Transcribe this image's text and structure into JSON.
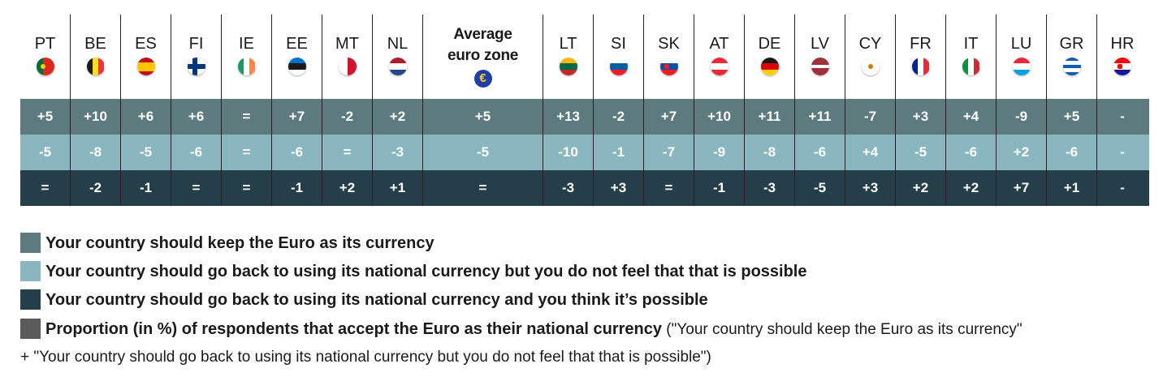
{
  "colors": {
    "keep": "#5d7b7e",
    "back_impossible": "#8ab6bf",
    "back_possible": "#253f4a",
    "accept": "#5a5a5a"
  },
  "chart_data": {
    "type": "table",
    "columns": [
      {
        "code": "PT",
        "flag": "portugal-flag-icon"
      },
      {
        "code": "BE",
        "flag": "belgium-flag-icon"
      },
      {
        "code": "ES",
        "flag": "spain-flag-icon"
      },
      {
        "code": "FI",
        "flag": "finland-flag-icon"
      },
      {
        "code": "IE",
        "flag": "ireland-flag-icon"
      },
      {
        "code": "EE",
        "flag": "estonia-flag-icon"
      },
      {
        "code": "MT",
        "flag": "malta-flag-icon"
      },
      {
        "code": "NL",
        "flag": "netherlands-flag-icon"
      },
      {
        "code": "Average euro zone",
        "flag": "euro-icon",
        "is_average": true
      },
      {
        "code": "LT",
        "flag": "lithuania-flag-icon"
      },
      {
        "code": "SI",
        "flag": "slovenia-flag-icon"
      },
      {
        "code": "SK",
        "flag": "slovakia-flag-icon"
      },
      {
        "code": "AT",
        "flag": "austria-flag-icon"
      },
      {
        "code": "DE",
        "flag": "germany-flag-icon"
      },
      {
        "code": "LV",
        "flag": "latvia-flag-icon"
      },
      {
        "code": "CY",
        "flag": "cyprus-flag-icon"
      },
      {
        "code": "FR",
        "flag": "france-flag-icon"
      },
      {
        "code": "IT",
        "flag": "italy-flag-icon"
      },
      {
        "code": "LU",
        "flag": "luxembourg-flag-icon"
      },
      {
        "code": "GR",
        "flag": "greece-flag-icon"
      },
      {
        "code": "HR",
        "flag": "croatia-flag-icon"
      }
    ],
    "rows": [
      {
        "color_key": "keep",
        "values": [
          "+5",
          "+10",
          "+6",
          "+6",
          "=",
          "+7",
          "-2",
          "+2",
          "+5",
          "+13",
          "-2",
          "+7",
          "+10",
          "+11",
          "+11",
          "-7",
          "+3",
          "+4",
          "-9",
          "+5",
          "-"
        ]
      },
      {
        "color_key": "back_impossible",
        "values": [
          "-5",
          "-8",
          "-5",
          "-6",
          "=",
          "-6",
          "=",
          "-3",
          "-5",
          "-10",
          "-1",
          "-7",
          "-9",
          "-8",
          "-6",
          "+4",
          "-5",
          "-6",
          "+2",
          "-6",
          "-"
        ]
      },
      {
        "color_key": "back_possible",
        "values": [
          "=",
          "-2",
          "-1",
          "=",
          "=",
          "-1",
          "+2",
          "+1",
          "=",
          "-3",
          "+3",
          "=",
          "-1",
          "-3",
          "-5",
          "+3",
          "+2",
          "+2",
          "+7",
          "+1",
          "-"
        ]
      }
    ]
  },
  "legend": [
    {
      "color_key": "keep",
      "label": "Your country should keep the Euro as its currency",
      "note": ""
    },
    {
      "color_key": "back_impossible",
      "label": "Your country should go back to using its national currency but you do not feel that that is possible",
      "note": ""
    },
    {
      "color_key": "back_possible",
      "label": "Your country should go back to using its national currency and you think it’s possible",
      "note": ""
    },
    {
      "color_key": "accept",
      "label": "Proportion (in %) of respondents that accept the Euro as their national currency",
      "note": " (\"Your country should keep the Euro as its currency\""
    }
  ],
  "footnote": "+ \"Your country should go back to using its national currency but you do not feel that that is possible\")"
}
